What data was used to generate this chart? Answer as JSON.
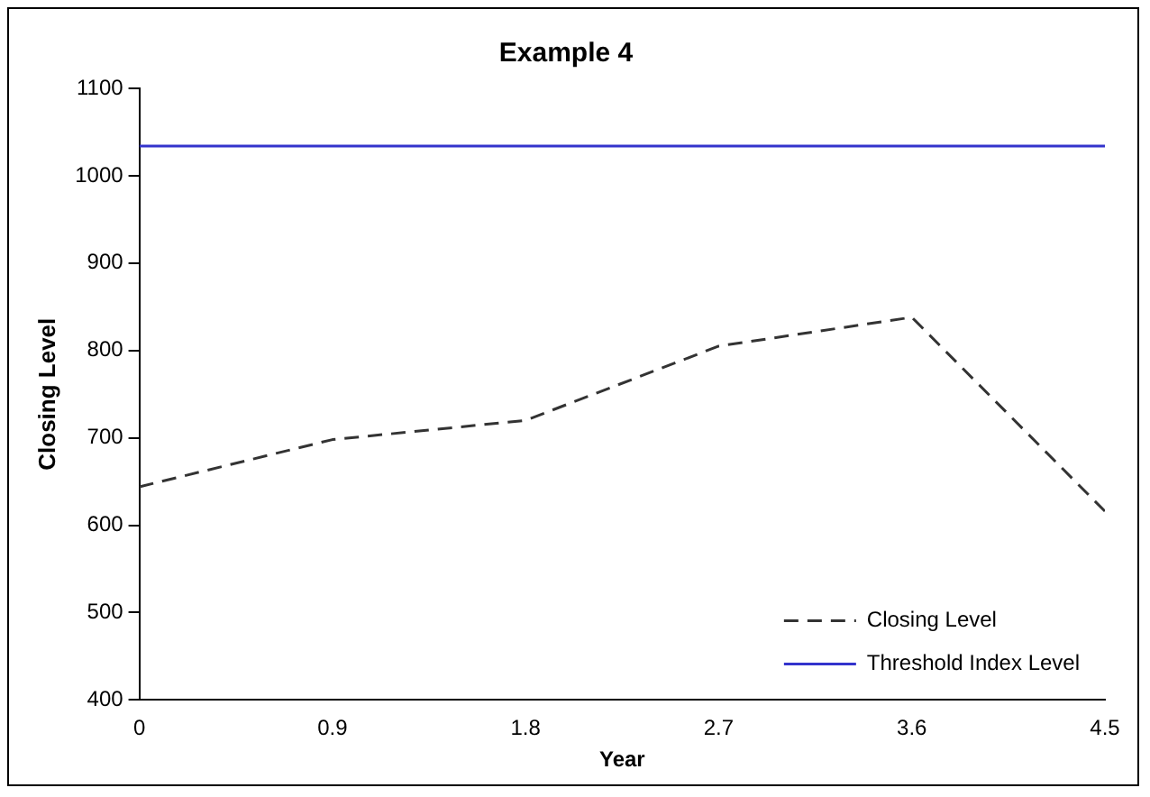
{
  "chart_data": {
    "type": "line",
    "title": "Example 4",
    "xlabel": "Year",
    "ylabel": "Closing Level",
    "x": [
      0,
      0.9,
      1.8,
      2.7,
      3.6,
      4.5
    ],
    "series": [
      {
        "name": "Closing Level",
        "color": "#333333",
        "line_style": "dashed",
        "values": [
          644,
          698,
          720,
          805,
          838,
          616
        ]
      },
      {
        "name": "Threshold Index Level",
        "color": "#3333cc",
        "line_style": "solid",
        "values": [
          1034,
          1034,
          1034,
          1034,
          1034,
          1034
        ]
      }
    ],
    "xlim": [
      0,
      4.5
    ],
    "xticks": [
      0,
      0.9,
      1.8,
      2.7,
      3.6,
      4.5
    ],
    "ylim": [
      400,
      1100
    ],
    "yticks": [
      400,
      500,
      600,
      700,
      800,
      900,
      1000,
      1100
    ],
    "grid": false,
    "legend": "bottom right",
    "marker": "none"
  }
}
